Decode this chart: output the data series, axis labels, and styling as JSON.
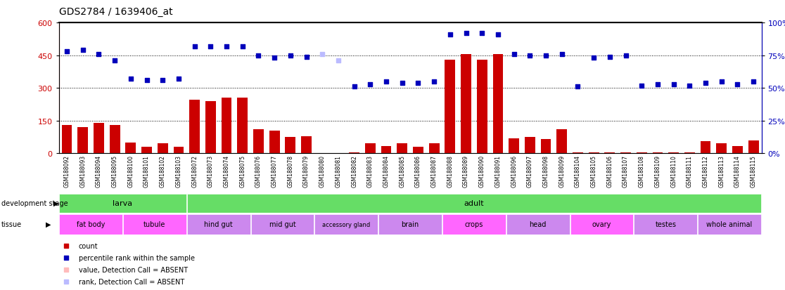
{
  "title": "GDS2784 / 1639406_at",
  "samples": [
    "GSM188092",
    "GSM188093",
    "GSM188094",
    "GSM188095",
    "GSM188100",
    "GSM188101",
    "GSM188102",
    "GSM188103",
    "GSM188072",
    "GSM188073",
    "GSM188074",
    "GSM188075",
    "GSM188076",
    "GSM188077",
    "GSM188078",
    "GSM188079",
    "GSM188080",
    "GSM188081",
    "GSM188082",
    "GSM188083",
    "GSM188084",
    "GSM188085",
    "GSM188086",
    "GSM188087",
    "GSM188088",
    "GSM188089",
    "GSM188090",
    "GSM188091",
    "GSM188096",
    "GSM188097",
    "GSM188098",
    "GSM188099",
    "GSM188104",
    "GSM188105",
    "GSM188106",
    "GSM188107",
    "GSM188108",
    "GSM188109",
    "GSM188110",
    "GSM188111",
    "GSM188112",
    "GSM188113",
    "GSM188114",
    "GSM188115"
  ],
  "counts": [
    130,
    120,
    140,
    130,
    50,
    30,
    45,
    30,
    245,
    240,
    255,
    255,
    110,
    105,
    75,
    80,
    2,
    2,
    3,
    45,
    35,
    45,
    30,
    45,
    430,
    455,
    430,
    455,
    70,
    75,
    65,
    110,
    3,
    5,
    3,
    5,
    3,
    5,
    5,
    3,
    55,
    45,
    35,
    60
  ],
  "percentile_ranks": [
    78,
    79,
    76,
    71,
    57,
    56,
    56,
    57,
    82,
    82,
    82,
    82,
    75,
    73,
    75,
    74,
    76,
    71,
    51,
    53,
    55,
    54,
    54,
    55,
    91,
    92,
    92,
    91,
    76,
    75,
    75,
    76,
    51,
    73,
    74,
    75,
    52,
    53,
    53,
    52,
    54,
    55,
    53,
    55
  ],
  "absent_mask": [
    false,
    false,
    false,
    false,
    false,
    false,
    false,
    false,
    false,
    false,
    false,
    false,
    false,
    false,
    false,
    false,
    true,
    true,
    false,
    false,
    false,
    false,
    false,
    false,
    false,
    false,
    false,
    false,
    false,
    false,
    false,
    false,
    false,
    false,
    false,
    false,
    false,
    false,
    false,
    false,
    false,
    false,
    false,
    false
  ],
  "development_stages": [
    {
      "label": "larva",
      "start": 0,
      "end": 8
    },
    {
      "label": "adult",
      "start": 8,
      "end": 44
    }
  ],
  "tissues": [
    {
      "label": "fat body",
      "start": 0,
      "end": 4,
      "pink": true
    },
    {
      "label": "tubule",
      "start": 4,
      "end": 8,
      "pink": true
    },
    {
      "label": "hind gut",
      "start": 8,
      "end": 12,
      "pink": false
    },
    {
      "label": "mid gut",
      "start": 12,
      "end": 16,
      "pink": false
    },
    {
      "label": "accessory gland",
      "start": 16,
      "end": 20,
      "pink": false
    },
    {
      "label": "brain",
      "start": 20,
      "end": 24,
      "pink": false
    },
    {
      "label": "crops",
      "start": 24,
      "end": 28,
      "pink": true
    },
    {
      "label": "head",
      "start": 28,
      "end": 32,
      "pink": false
    },
    {
      "label": "ovary",
      "start": 32,
      "end": 36,
      "pink": true
    },
    {
      "label": "testes",
      "start": 36,
      "end": 40,
      "pink": false
    },
    {
      "label": "whole animal",
      "start": 40,
      "end": 44,
      "pink": false
    }
  ],
  "ylim_left": [
    0,
    600
  ],
  "ylim_right": [
    0,
    100
  ],
  "bar_color": "#cc0000",
  "scatter_color": "#0000bb",
  "absent_bar_color": "#ffbbbb",
  "absent_scatter_color": "#bbbbff",
  "stage_color": "#66dd66",
  "tissue_pink": "#ff66ff",
  "tissue_purple": "#cc88ee"
}
